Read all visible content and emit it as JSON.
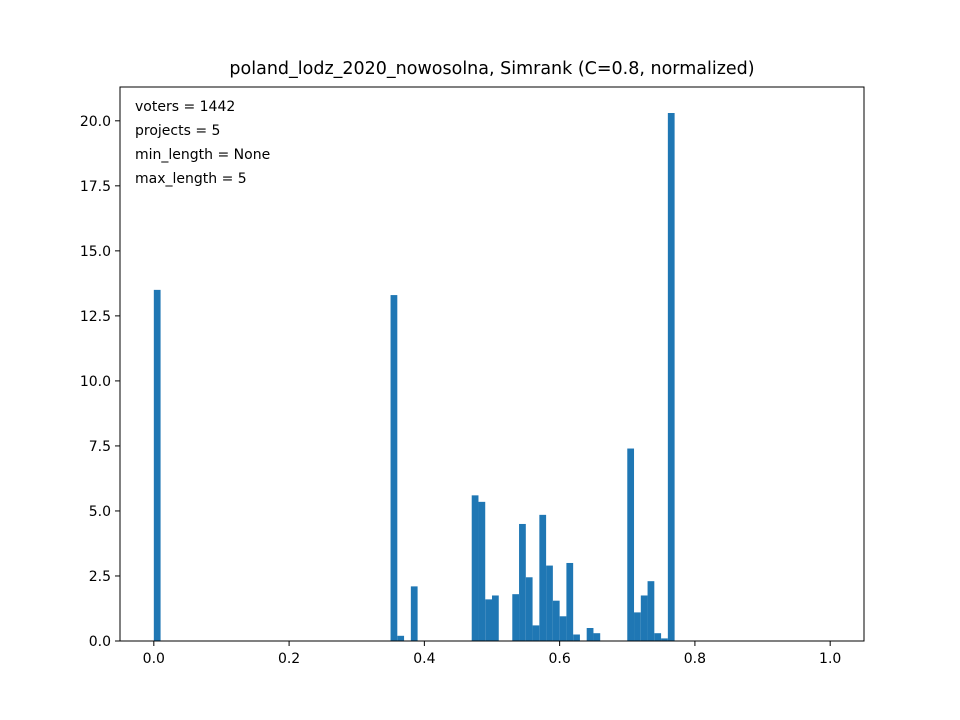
{
  "chart_data": {
    "type": "bar",
    "title": "poland_lodz_2020_nowosolna, Simrank (C=0.8, normalized)",
    "xlabel": "",
    "ylabel": "",
    "xlim": [
      -0.05,
      1.05
    ],
    "ylim": [
      0,
      21.3
    ],
    "bin_width": 0.01,
    "x_ticks": [
      0.0,
      0.2,
      0.4,
      0.6,
      0.8,
      1.0
    ],
    "x_tick_labels": [
      "0.0",
      "0.2",
      "0.4",
      "0.6",
      "0.8",
      "1.0"
    ],
    "y_ticks": [
      0,
      2.5,
      5,
      7.5,
      10,
      12.5,
      15,
      17.5,
      20
    ],
    "y_tick_labels": [
      "0.0",
      "2.5",
      "5.0",
      "7.5",
      "10.0",
      "12.5",
      "15.0",
      "17.5",
      "20.0"
    ],
    "annotations": [
      "voters = 1442",
      "projects = 5",
      "min_length = None",
      "max_length = 5"
    ],
    "annotation_placement": "top-left",
    "grid": false,
    "color": "#1f77b4",
    "bins": [
      {
        "x": 0.0,
        "value": 13.5
      },
      {
        "x": 0.35,
        "value": 13.3
      },
      {
        "x": 0.36,
        "value": 0.2
      },
      {
        "x": 0.38,
        "value": 2.1
      },
      {
        "x": 0.47,
        "value": 5.6
      },
      {
        "x": 0.48,
        "value": 5.35
      },
      {
        "x": 0.49,
        "value": 1.6
      },
      {
        "x": 0.5,
        "value": 1.75
      },
      {
        "x": 0.53,
        "value": 1.8
      },
      {
        "x": 0.54,
        "value": 4.5
      },
      {
        "x": 0.55,
        "value": 2.45
      },
      {
        "x": 0.56,
        "value": 0.6
      },
      {
        "x": 0.57,
        "value": 4.85
      },
      {
        "x": 0.58,
        "value": 2.9
      },
      {
        "x": 0.59,
        "value": 1.55
      },
      {
        "x": 0.6,
        "value": 0.95
      },
      {
        "x": 0.61,
        "value": 3.0
      },
      {
        "x": 0.62,
        "value": 0.25
      },
      {
        "x": 0.64,
        "value": 0.5
      },
      {
        "x": 0.65,
        "value": 0.3
      },
      {
        "x": 0.7,
        "value": 7.4
      },
      {
        "x": 0.71,
        "value": 1.1
      },
      {
        "x": 0.72,
        "value": 1.75
      },
      {
        "x": 0.73,
        "value": 2.3
      },
      {
        "x": 0.74,
        "value": 0.3
      },
      {
        "x": 0.75,
        "value": 0.1
      },
      {
        "x": 0.76,
        "value": 20.3
      }
    ]
  }
}
